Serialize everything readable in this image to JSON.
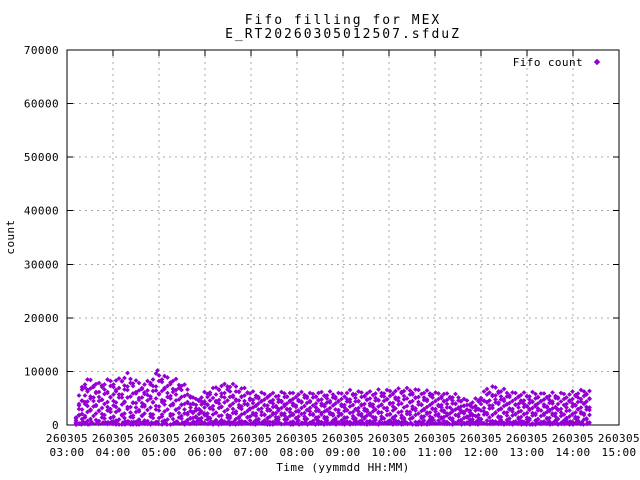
{
  "window": {
    "background": "#ffffff"
  },
  "chart_data": {
    "type": "scatter",
    "title": "Fifo filling for MEX",
    "subtitle": "E_RT20260305012507.sfduZ",
    "xlabel": "Time (yymmdd HH:MM)",
    "ylabel": "count",
    "ylim": [
      0,
      70000
    ],
    "xlim_hours": [
      3,
      15
    ],
    "ytick_values": [
      0,
      10000,
      20000,
      30000,
      40000,
      50000,
      60000,
      70000
    ],
    "xtick_date": "260305",
    "xtick_times": [
      "03:00",
      "04:00",
      "05:00",
      "06:00",
      "07:00",
      "08:00",
      "09:00",
      "10:00",
      "11:00",
      "12:00",
      "13:00",
      "14:00",
      "15:00"
    ],
    "xtick_hours": [
      3,
      4,
      5,
      6,
      7,
      8,
      9,
      10,
      11,
      12,
      13,
      14,
      15
    ],
    "grid": {
      "visible": true,
      "style": "dashed",
      "color": "#a8a8a8"
    },
    "border_color": "#000000",
    "legend": {
      "position": "top-right-inside",
      "entries": [
        {
          "label": "Fifo count",
          "marker": "diamond",
          "color": "#9400d3"
        }
      ]
    },
    "series": [
      {
        "name": "Fifo count",
        "color": "#9400d3",
        "marker": "diamond",
        "time_span_hours": [
          3.2,
          14.42
        ],
        "value_band": [
          0,
          10200
        ],
        "description": "Dense band of samples: solid floor near 0-700 plus ~7 wavy sawtooth stripes stacked up to the top envelope",
        "top_envelope_keypoints": [
          [
            3.2,
            1500
          ],
          [
            3.27,
            5500
          ],
          [
            3.34,
            7800
          ],
          [
            3.45,
            8300
          ],
          [
            3.55,
            8000
          ],
          [
            3.68,
            7400
          ],
          [
            3.82,
            7800
          ],
          [
            3.95,
            8200
          ],
          [
            4.08,
            8000
          ],
          [
            4.2,
            8800
          ],
          [
            4.33,
            9000
          ],
          [
            4.45,
            8200
          ],
          [
            4.6,
            7400
          ],
          [
            4.75,
            7800
          ],
          [
            4.9,
            8800
          ],
          [
            5.0,
            9200
          ],
          [
            5.12,
            8800
          ],
          [
            5.25,
            8400
          ],
          [
            5.4,
            7900
          ],
          [
            5.55,
            7200
          ],
          [
            5.68,
            5800
          ],
          [
            5.8,
            4400
          ],
          [
            5.95,
            5300
          ],
          [
            6.1,
            6300
          ],
          [
            6.3,
            7000
          ],
          [
            6.5,
            7400
          ],
          [
            6.68,
            7100
          ],
          [
            6.85,
            6500
          ],
          [
            7.05,
            5800
          ],
          [
            7.35,
            5600
          ],
          [
            7.7,
            5800
          ],
          [
            8.1,
            5700
          ],
          [
            8.5,
            5800
          ],
          [
            8.9,
            5700
          ],
          [
            9.2,
            6000
          ],
          [
            9.5,
            5800
          ],
          [
            9.85,
            6100
          ],
          [
            10.15,
            6300
          ],
          [
            10.45,
            6500
          ],
          [
            10.75,
            6100
          ],
          [
            11.05,
            5800
          ],
          [
            11.35,
            5400
          ],
          [
            11.6,
            4900
          ],
          [
            11.78,
            3900
          ],
          [
            11.95,
            4800
          ],
          [
            12.12,
            6500
          ],
          [
            12.25,
            7000
          ],
          [
            12.4,
            6400
          ],
          [
            12.65,
            5900
          ],
          [
            12.95,
            5600
          ],
          [
            13.25,
            5800
          ],
          [
            13.55,
            5500
          ],
          [
            13.85,
            5700
          ],
          [
            14.1,
            6000
          ],
          [
            14.3,
            6300
          ],
          [
            14.42,
            6100
          ]
        ],
        "stripe_fractions": [
          0.14,
          0.28,
          0.42,
          0.56,
          0.7,
          0.85,
          1.0
        ],
        "stripe_wave_period_hours": 0.21,
        "outlier_points": [
          [
            4.97,
            10200
          ]
        ]
      }
    ]
  }
}
